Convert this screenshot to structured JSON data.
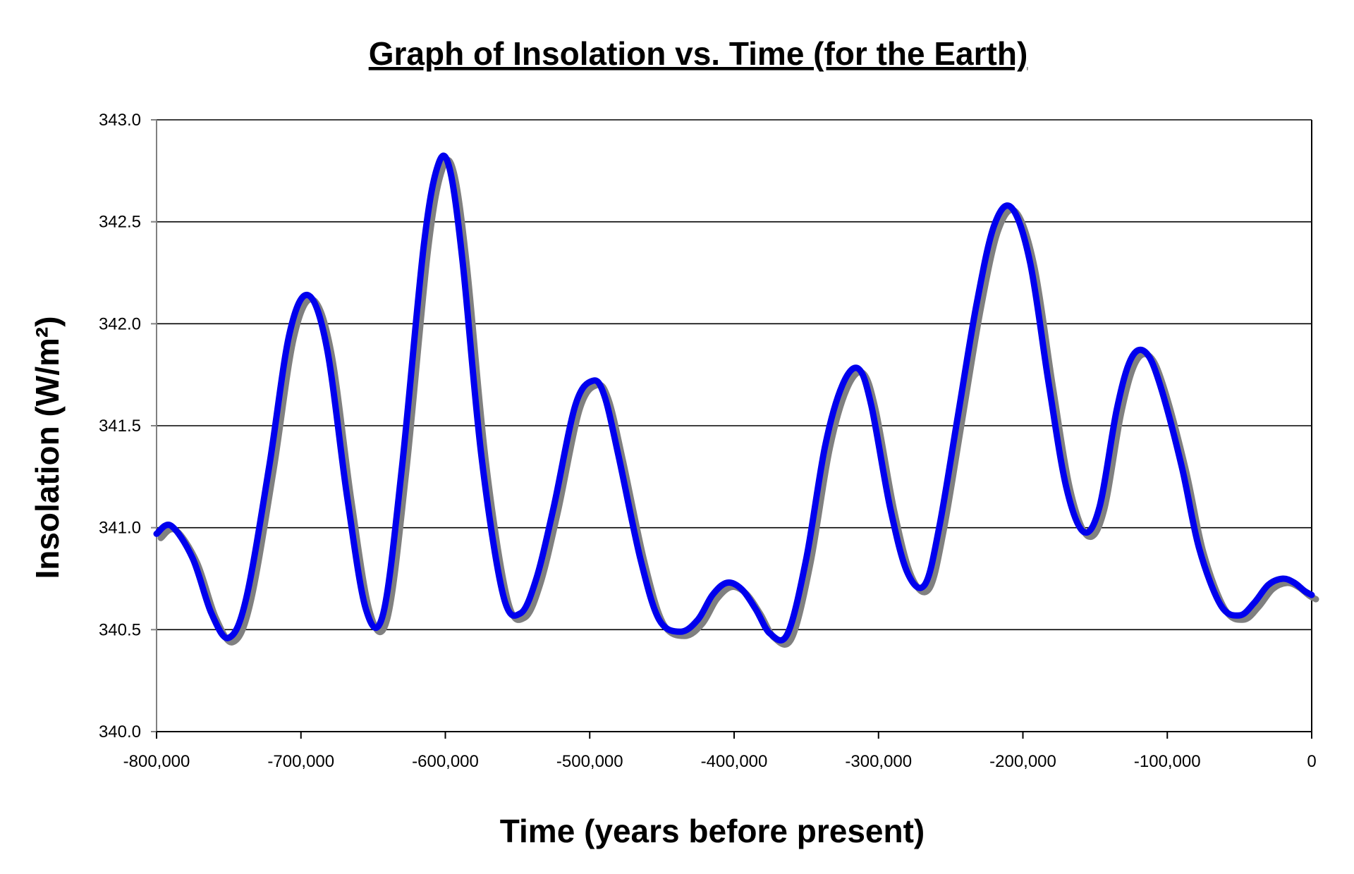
{
  "chart_data": {
    "type": "line",
    "title": "Graph of Insolation vs. Time (for the Earth)",
    "xlabel": "Time (years before present)",
    "ylabel": "Insolation (W/m²)",
    "xlim": [
      -800000,
      0
    ],
    "ylim": [
      340.0,
      343.0
    ],
    "x_ticks": [
      -800000,
      -700000,
      -600000,
      -500000,
      -400000,
      -300000,
      -200000,
      -100000,
      0
    ],
    "x_tick_labels": [
      "-800,000",
      "-700,000",
      "-600,000",
      "-500,000",
      "-400,000",
      "-300,000",
      "-200,000",
      "-100,000",
      "0"
    ],
    "y_ticks": [
      340.0,
      340.5,
      341.0,
      341.5,
      342.0,
      342.5,
      343.0
    ],
    "y_tick_labels": [
      "340.0",
      "340.5",
      "341.0",
      "341.5",
      "342.0",
      "342.5",
      "343.0"
    ],
    "grid": "horizontal",
    "legend": "none",
    "series": [
      {
        "color": "#0000ee",
        "shadow_color": "#808080",
        "x": [
          -800000,
          -790000,
          -775000,
          -762000,
          -750000,
          -738000,
          -722000,
          -708000,
          -695000,
          -682000,
          -668000,
          -655000,
          -643000,
          -630000,
          -615000,
          -605000,
          -597000,
          -588000,
          -575000,
          -560000,
          -548000,
          -537000,
          -525000,
          -510000,
          -498000,
          -490000,
          -480000,
          -465000,
          -452000,
          -437000,
          -425000,
          -415000,
          -405000,
          -395000,
          -385000,
          -375000,
          -363000,
          -350000,
          -337000,
          -325000,
          -314000,
          -305000,
          -292000,
          -280000,
          -268000,
          -258000,
          -245000,
          -232000,
          -220000,
          -208000,
          -195000,
          -182000,
          -170000,
          -158000,
          -147000,
          -135000,
          -125000,
          -115000,
          -105000,
          -90000,
          -78000,
          -63000,
          -50000,
          -40000,
          -30000,
          -20000,
          -12000,
          -5000,
          0
        ],
        "y": [
          340.97,
          341.01,
          340.85,
          340.58,
          340.46,
          340.65,
          341.3,
          341.95,
          342.14,
          341.88,
          341.15,
          340.6,
          340.58,
          341.3,
          342.38,
          342.78,
          342.76,
          342.3,
          341.35,
          340.67,
          340.58,
          340.75,
          341.1,
          341.6,
          341.72,
          341.65,
          341.35,
          340.85,
          340.55,
          340.49,
          340.55,
          340.67,
          340.73,
          340.7,
          340.6,
          340.48,
          340.48,
          340.85,
          341.4,
          341.7,
          341.78,
          341.6,
          341.1,
          340.78,
          340.72,
          341.0,
          341.55,
          342.1,
          342.48,
          342.57,
          342.3,
          341.7,
          341.2,
          340.98,
          341.1,
          341.58,
          341.83,
          341.86,
          341.7,
          341.3,
          340.9,
          340.62,
          340.57,
          340.63,
          340.72,
          340.75,
          340.73,
          340.69,
          340.67
        ]
      }
    ]
  }
}
